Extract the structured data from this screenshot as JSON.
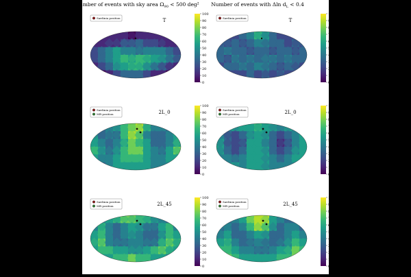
{
  "figure": {
    "col_titles": [
      "Number of events with sky area Ω",
      "Number of events with Δln d",
      "< 500 deg²",
      "< 0.4"
    ],
    "col_title_parts": {
      "left": {
        "pre": "Number of events with sky area Ω",
        "sub": "90",
        "post": " < 500 deg²"
      },
      "right": {
        "pre": "Number of events with Δln d",
        "sub": "L",
        "post": " < 0.4"
      }
    }
  },
  "legend": {
    "sardinia": "Sardinia position",
    "mr": "MR position"
  },
  "colors": {
    "background": "#000000",
    "figure": "#ffffff",
    "sardinia_marker": "#8b1a1a",
    "mr_marker": "#2e7d32",
    "colormap": [
      "#440154",
      "#482878",
      "#3e4a89",
      "#31688e",
      "#26828e",
      "#1f9e89",
      "#35b779",
      "#6ece58",
      "#b5de2b",
      "#fde725"
    ]
  },
  "chart_data": [
    {
      "type": "heatmap",
      "projection": "mollweide",
      "title": "T",
      "colormap": "viridis",
      "colorbar": {
        "ticks": [
          0,
          10,
          20,
          30,
          40,
          50,
          60,
          70,
          80,
          90,
          100
        ],
        "range": [
          0,
          100
        ]
      },
      "legend": [
        "Sardinia position"
      ],
      "grid": [
        [
          8,
          6,
          10,
          6,
          8,
          5,
          10,
          7,
          6,
          9,
          8,
          6
        ],
        [
          10,
          8,
          12,
          16,
          20,
          26,
          30,
          24,
          18,
          12,
          8,
          10
        ],
        [
          20,
          30,
          40,
          50,
          46,
          40,
          36,
          42,
          48,
          44,
          34,
          22
        ],
        [
          26,
          36,
          48,
          58,
          64,
          60,
          62,
          66,
          56,
          50,
          40,
          30
        ],
        [
          10,
          22,
          36,
          50,
          60,
          70,
          66,
          56,
          44,
          32,
          20,
          12
        ],
        [
          6,
          4,
          10,
          18,
          28,
          36,
          30,
          22,
          14,
          8,
          5,
          6
        ]
      ]
    },
    {
      "type": "heatmap",
      "projection": "mollweide",
      "title": "T",
      "colormap": "viridis",
      "colorbar": {
        "ticks": [
          0,
          10,
          20,
          30,
          40,
          50,
          60,
          70,
          80,
          90,
          100
        ],
        "range": [
          0,
          100
        ]
      },
      "legend": [
        "Sardinia position"
      ],
      "grid": [
        [
          20,
          24,
          18,
          30,
          40,
          70,
          52,
          30,
          22,
          18,
          24,
          20
        ],
        [
          28,
          22,
          34,
          26,
          38,
          46,
          40,
          30,
          36,
          24,
          30,
          26
        ],
        [
          30,
          40,
          28,
          36,
          24,
          30,
          34,
          26,
          38,
          30,
          22,
          34
        ],
        [
          36,
          26,
          40,
          30,
          44,
          28,
          38,
          46,
          30,
          42,
          34,
          30
        ],
        [
          24,
          34,
          30,
          42,
          34,
          48,
          40,
          32,
          26,
          36,
          28,
          22
        ],
        [
          22,
          18,
          26,
          20,
          30,
          24,
          28,
          22,
          30,
          20,
          26,
          18
        ]
      ]
    },
    {
      "type": "heatmap",
      "projection": "mollweide",
      "title": "2L_0",
      "colormap": "viridis",
      "colorbar": {
        "ticks": [
          0,
          10,
          20,
          30,
          40,
          50,
          60,
          70,
          80,
          90,
          100
        ],
        "range": [
          0,
          100
        ]
      },
      "legend": [
        "Sardinia position",
        "MR position"
      ],
      "grid": [
        [
          40,
          36,
          44,
          50,
          62,
          80,
          84,
          62,
          48,
          42,
          38,
          44
        ],
        [
          50,
          30,
          40,
          34,
          66,
          88,
          78,
          46,
          30,
          38,
          46,
          54
        ],
        [
          60,
          44,
          30,
          40,
          58,
          74,
          70,
          56,
          36,
          30,
          44,
          58
        ],
        [
          70,
          52,
          38,
          46,
          62,
          78,
          82,
          60,
          40,
          36,
          52,
          74
        ],
        [
          56,
          46,
          42,
          52,
          66,
          70,
          68,
          58,
          46,
          44,
          50,
          60
        ],
        [
          42,
          38,
          46,
          50,
          56,
          60,
          58,
          52,
          48,
          40,
          44,
          46
        ]
      ]
    },
    {
      "type": "heatmap",
      "projection": "mollweide",
      "title": "2L_0",
      "colormap": "viridis",
      "colorbar": {
        "ticks": [
          0,
          10,
          20,
          30,
          40,
          50,
          60,
          70,
          80,
          90,
          100
        ],
        "range": [
          0,
          100
        ]
      },
      "legend": [
        "Sardinia position",
        "MR position"
      ],
      "grid": [
        [
          40,
          44,
          50,
          60,
          54,
          62,
          58,
          50,
          46,
          52,
          48,
          42
        ],
        [
          46,
          30,
          22,
          34,
          48,
          60,
          52,
          34,
          24,
          30,
          44,
          50
        ],
        [
          52,
          28,
          18,
          26,
          50,
          56,
          48,
          30,
          16,
          26,
          42,
          56
        ],
        [
          56,
          34,
          22,
          30,
          54,
          60,
          56,
          36,
          22,
          30,
          46,
          60
        ],
        [
          48,
          44,
          36,
          40,
          52,
          58,
          50,
          42,
          34,
          40,
          50,
          52
        ],
        [
          42,
          46,
          50,
          48,
          52,
          54,
          50,
          48,
          46,
          44,
          48,
          44
        ]
      ]
    },
    {
      "type": "heatmap",
      "projection": "mollweide",
      "title": "2L_45",
      "colormap": "viridis",
      "colorbar": {
        "ticks": [
          0,
          10,
          20,
          30,
          40,
          50,
          60,
          70,
          80,
          90,
          100
        ],
        "range": [
          0,
          100
        ]
      },
      "legend": [
        "Sardinia position",
        "MR position"
      ],
      "grid": [
        [
          34,
          40,
          52,
          64,
          76,
          80,
          72,
          62,
          50,
          44,
          36,
          30
        ],
        [
          40,
          62,
          48,
          36,
          44,
          56,
          50,
          40,
          38,
          52,
          66,
          42
        ],
        [
          52,
          70,
          40,
          30,
          42,
          50,
          46,
          34,
          32,
          44,
          72,
          54
        ],
        [
          60,
          74,
          46,
          34,
          38,
          46,
          40,
          36,
          38,
          50,
          76,
          62
        ],
        [
          56,
          66,
          72,
          60,
          50,
          46,
          48,
          56,
          64,
          74,
          68,
          58
        ],
        [
          44,
          50,
          58,
          66,
          70,
          74,
          72,
          66,
          60,
          54,
          48,
          42
        ]
      ]
    },
    {
      "type": "heatmap",
      "projection": "mollweide",
      "title": "2L_45",
      "colormap": "viridis",
      "colorbar": {
        "ticks": [
          0,
          10,
          20,
          30,
          40,
          50,
          60,
          70,
          80,
          90,
          100
        ],
        "range": [
          0,
          100
        ]
      },
      "legend": [
        "Sardinia position",
        "MR position"
      ],
      "grid": [
        [
          30,
          36,
          44,
          56,
          78,
          92,
          86,
          60,
          46,
          38,
          32,
          28
        ],
        [
          36,
          48,
          30,
          40,
          62,
          84,
          74,
          50,
          34,
          46,
          40,
          34
        ],
        [
          44,
          54,
          36,
          30,
          46,
          60,
          54,
          38,
          30,
          42,
          56,
          46
        ],
        [
          50,
          62,
          42,
          30,
          36,
          44,
          40,
          32,
          36,
          48,
          66,
          54
        ],
        [
          62,
          72,
          56,
          44,
          40,
          38,
          36,
          42,
          50,
          60,
          74,
          66
        ],
        [
          80,
          76,
          64,
          56,
          52,
          50,
          52,
          56,
          62,
          70,
          78,
          84
        ]
      ]
    }
  ]
}
